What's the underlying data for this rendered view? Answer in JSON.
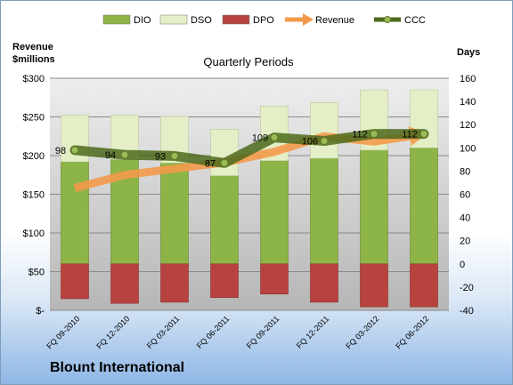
{
  "company": "Blount International",
  "colors": {
    "dio": "#8db446",
    "dso": "#e4efc7",
    "dpo": "#b8423f",
    "revenue": "#f39a4a",
    "ccc": "#4d6a1c",
    "plot_bg_top": "#eeeeee",
    "plot_bg_bottom": "#b6b6b6"
  },
  "chart_data": {
    "type": "bar",
    "title": "Quarterly Periods",
    "left_axis_title": [
      "Revenue",
      "$millions"
    ],
    "right_axis_title": "Days",
    "left_ticks": [
      "$-",
      "$50",
      "$100",
      "$150",
      "$200",
      "$250",
      "$300"
    ],
    "right_ticks": [
      "-40",
      "-20",
      "0",
      "20",
      "40",
      "60",
      "80",
      "100",
      "120",
      "140",
      "160"
    ],
    "ylim_left": [
      0,
      300
    ],
    "ylim_right": [
      -40,
      160
    ],
    "categories": [
      "FQ 09-2010",
      "FQ 12-2010",
      "FQ 03-2011",
      "FQ 06-2011",
      "FQ 09-2011",
      "FQ 12-2011",
      "FQ 03-2012",
      "FQ 06-2012"
    ],
    "legend": [
      {
        "key": "dio",
        "label": "DIO",
        "kind": "box"
      },
      {
        "key": "dso",
        "label": "DSO",
        "kind": "box"
      },
      {
        "key": "dpo",
        "label": "DPO",
        "kind": "box"
      },
      {
        "key": "revenue",
        "label": "Revenue",
        "kind": "arrow"
      },
      {
        "key": "ccc",
        "label": "CCC",
        "kind": "line"
      }
    ],
    "series": [
      {
        "name": "DIO",
        "axis": "right",
        "values": [
          88,
          90,
          87,
          76,
          89,
          91,
          98,
          100
        ]
      },
      {
        "name": "DSO",
        "axis": "right",
        "values": [
          40,
          38,
          40,
          40,
          47,
          48,
          52,
          50
        ]
      },
      {
        "name": "DPO",
        "axis": "right",
        "values": [
          -30,
          -34,
          -33,
          -29,
          -26,
          -33,
          -37,
          -37
        ]
      },
      {
        "name": "Revenue",
        "axis": "left",
        "values": [
          158,
          175,
          183,
          191,
          205,
          225,
          218,
          228
        ]
      },
      {
        "name": "CCC",
        "axis": "right",
        "values": [
          98,
          94,
          93,
          87,
          109,
          106,
          112,
          112
        ]
      }
    ],
    "grid": true,
    "legend_position": "top"
  }
}
